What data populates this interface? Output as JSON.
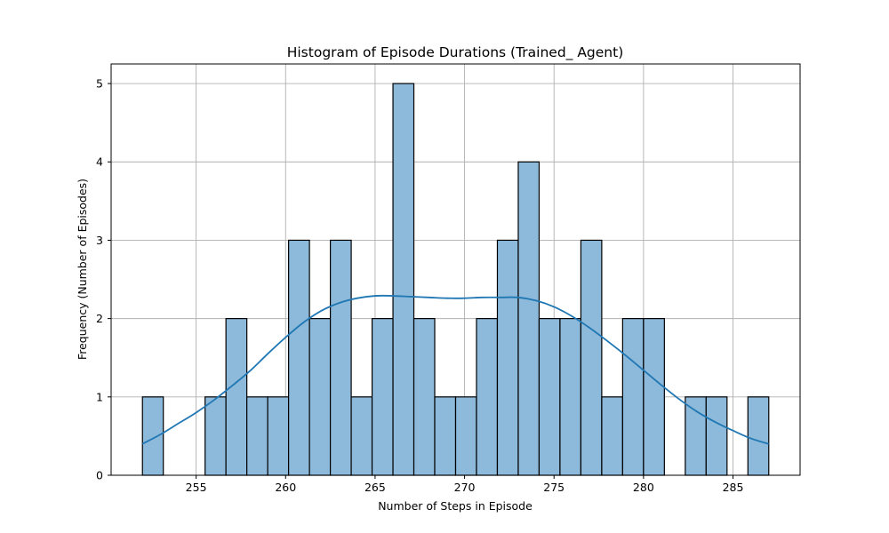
{
  "chart_data": {
    "type": "bar",
    "title": "Histogram of Episode Durations (Trained_ Agent)",
    "xlabel": "Number of Steps in Episode",
    "ylabel": "Frequency (Number of Episodes)",
    "xlim": [
      250.25,
      288.75
    ],
    "ylim": [
      0,
      5.25
    ],
    "xticks": [
      255,
      260,
      265,
      270,
      275,
      280,
      285
    ],
    "yticks": [
      0,
      1,
      2,
      3,
      4,
      5
    ],
    "grid": true,
    "bins": {
      "start": 252,
      "end": 287,
      "counts": [
        1,
        0,
        0,
        1,
        2,
        1,
        1,
        3,
        2,
        3,
        1,
        2,
        5,
        2,
        1,
        1,
        2,
        3,
        4,
        2,
        2,
        3,
        1,
        2,
        2,
        0,
        1,
        1,
        0,
        1
      ]
    },
    "kde": {
      "x": [
        252,
        253,
        254,
        255,
        256,
        257,
        258,
        259,
        260,
        261,
        262,
        263,
        264,
        265,
        266,
        267,
        268,
        269,
        270,
        271,
        272,
        273,
        274,
        275,
        276,
        277,
        278,
        279,
        280,
        281,
        282,
        283,
        284,
        285,
        286,
        287
      ],
      "y": [
        0.4,
        0.52,
        0.66,
        0.8,
        0.96,
        1.14,
        1.33,
        1.55,
        1.76,
        1.95,
        2.1,
        2.2,
        2.26,
        2.29,
        2.29,
        2.28,
        2.27,
        2.26,
        2.26,
        2.27,
        2.27,
        2.27,
        2.23,
        2.15,
        2.03,
        1.88,
        1.71,
        1.53,
        1.34,
        1.15,
        0.97,
        0.81,
        0.68,
        0.57,
        0.47,
        0.4
      ]
    },
    "colors": {
      "bar_fill": "#8db9da",
      "bar_edge": "#000000",
      "kde_line": "#1f77b4",
      "grid": "#b0b0b0"
    }
  }
}
